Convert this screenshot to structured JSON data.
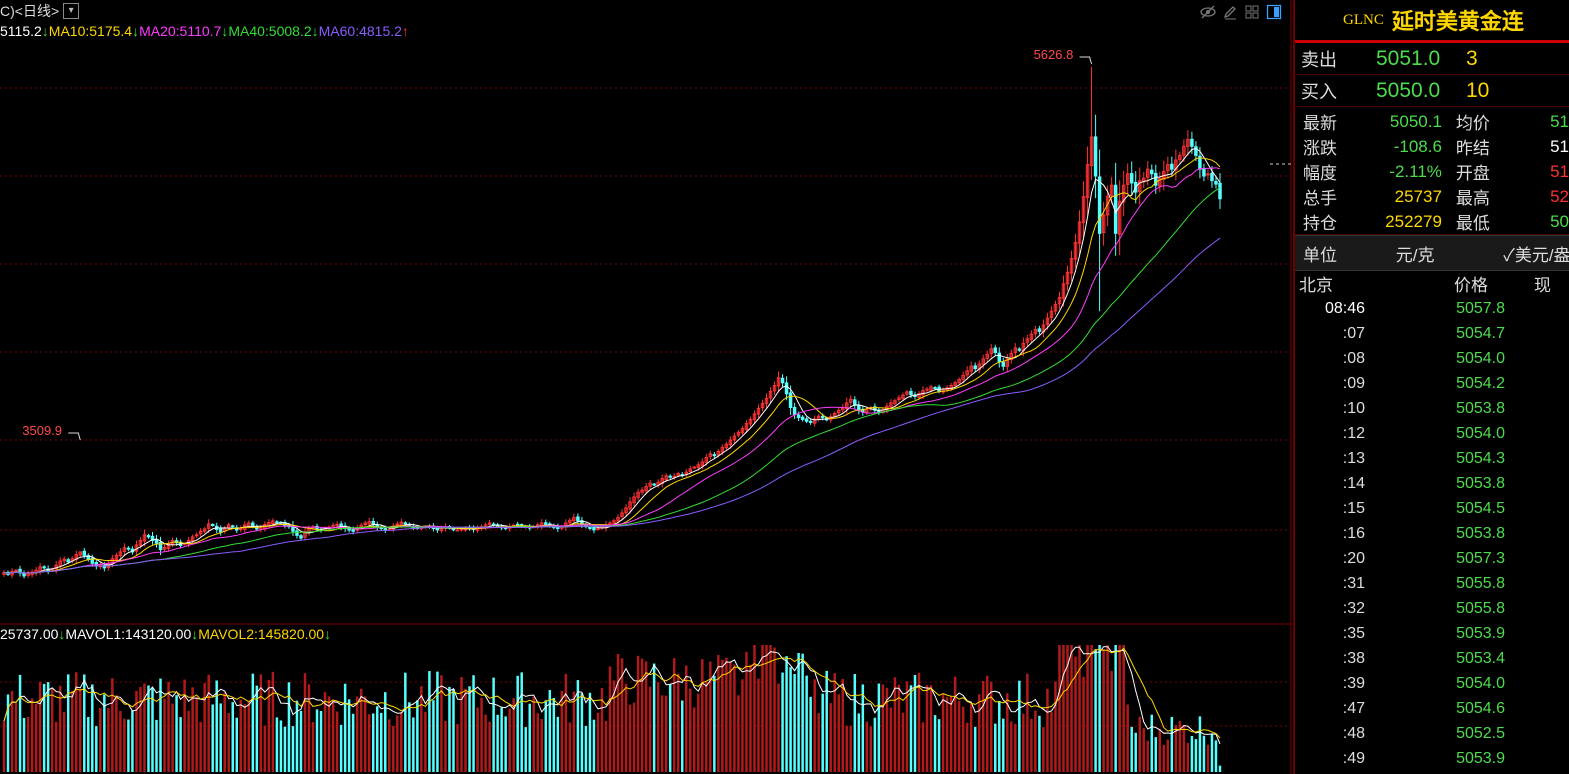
{
  "header": {
    "period_label": "C)<日线>",
    "dropdown_glyph": "▾"
  },
  "ma_legend": [
    {
      "text": "5115.2",
      "arrow": "↓",
      "color": "#ffffff"
    },
    {
      "text": "MA10:5175.4",
      "arrow": "↓",
      "color": "#ffd700"
    },
    {
      "text": "MA20:5110.7",
      "arrow": "↓",
      "color": "#ff3cff"
    },
    {
      "text": "MA40:5008.2",
      "arrow": "↓",
      "color": "#33dd33"
    },
    {
      "text": "MA60:4815.2",
      "arrow": "↑",
      "color": "#8a5cff"
    }
  ],
  "vol_legend": [
    {
      "text": "25737.00",
      "arrow": "↓",
      "color": "#ffffff"
    },
    {
      "text": "MAVOL1:143120.00",
      "arrow": "↓",
      "color": "#ffffff"
    },
    {
      "text": "MAVOL2:145820.00",
      "arrow": "↓",
      "color": "#ffd700"
    }
  ],
  "toolbar_icons": [
    "eye-icon",
    "pencil-icon",
    "grid-icon",
    "panel-icon"
  ],
  "chart_data": {
    "type": "candlestick",
    "high_marker": "5626.8",
    "low_marker": "3509.9",
    "colors": {
      "up": "#ff3232",
      "down": "#54ffff",
      "ma5": "#ffffff",
      "ma10": "#ffd700",
      "ma20": "#ff3cff",
      "ma40": "#33dd33",
      "ma60": "#8a5cff",
      "grid": "#7a0000"
    },
    "closes": [
      3420,
      3412,
      3425,
      3430,
      3418,
      3405,
      3415,
      3422,
      3430,
      3445,
      3440,
      3428,
      3436,
      3452,
      3470,
      3478,
      3466,
      3480,
      3498,
      3510,
      3495,
      3478,
      3460,
      3448,
      3452,
      3440,
      3462,
      3480,
      3495,
      3510,
      3528,
      3522,
      3510,
      3540,
      3560,
      3585,
      3575,
      3560,
      3548,
      3520,
      3530,
      3545,
      3560,
      3550,
      3538,
      3546,
      3560,
      3575,
      3585,
      3600,
      3610,
      3632,
      3625,
      3608,
      3596,
      3612,
      3628,
      3620,
      3605,
      3612,
      3628,
      3636,
      3622,
      3610,
      3615,
      3630,
      3638,
      3645,
      3640,
      3635,
      3625,
      3620,
      3600,
      3582,
      3570,
      3598,
      3612,
      3620,
      3610,
      3604,
      3612,
      3618,
      3626,
      3630,
      3618,
      3612,
      3605,
      3600,
      3615,
      3626,
      3636,
      3642,
      3628,
      3616,
      3612,
      3606,
      3610,
      3622,
      3632,
      3640,
      3630,
      3625,
      3618,
      3612,
      3616,
      3620,
      3618,
      3612,
      3606,
      3614,
      3620,
      3614,
      3608,
      3606,
      3610,
      3615,
      3612,
      3608,
      3615,
      3620,
      3628,
      3636,
      3630,
      3622,
      3616,
      3612,
      3620,
      3626,
      3630,
      3625,
      3618,
      3614,
      3620,
      3628,
      3636,
      3630,
      3624,
      3616,
      3612,
      3620,
      3636,
      3648,
      3660,
      3646,
      3630,
      3620,
      3612,
      3606,
      3612,
      3620,
      3628,
      3636,
      3646,
      3660,
      3680,
      3702,
      3728,
      3750,
      3770,
      3780,
      3795,
      3810,
      3802,
      3814,
      3830,
      3842,
      3836,
      3840,
      3852,
      3846,
      3858,
      3872,
      3880,
      3890,
      3902,
      3922,
      3938,
      3930,
      3948,
      3966,
      3980,
      3998,
      4015,
      4032,
      4048,
      4070,
      4088,
      4112,
      4136,
      4158,
      4180,
      4210,
      4236,
      4270,
      4248,
      4200,
      4140,
      4110,
      4096,
      4088,
      4080,
      4076,
      4090,
      4102,
      4096,
      4086,
      4100,
      4114,
      4128,
      4140,
      4160,
      4176,
      4150,
      4130,
      4120,
      4130,
      4140,
      4128,
      4118,
      4130,
      4146,
      4160,
      4170,
      4182,
      4194,
      4208,
      4196,
      4188,
      4200,
      4214,
      4220,
      4230,
      4224,
      4212,
      4218,
      4226,
      4236,
      4248,
      4262,
      4280,
      4300,
      4320,
      4310,
      4330,
      4352,
      4372,
      4396,
      4380,
      4340,
      4320,
      4352,
      4376,
      4400,
      4390,
      4420,
      4440,
      4460,
      4480,
      4472,
      4500,
      4530,
      4560,
      4590,
      4620,
      4680,
      4730,
      4790,
      4860,
      4950,
      5060,
      5200,
      5320,
      5150,
      4900,
      4980,
      5060,
      5110,
      4900,
      5040,
      5110,
      5160,
      5120,
      5080,
      5130,
      5140,
      5180,
      5160,
      5110,
      5140,
      5170,
      5200,
      5180,
      5220,
      5240,
      5280,
      5310,
      5280,
      5240,
      5180,
      5150,
      5160,
      5130,
      5115,
      5051
    ]
  },
  "side": {
    "code": "GLNC",
    "name": "延时美黄金连",
    "sell_label": "卖出",
    "sell_price": "5051.0",
    "sell_qty": "3",
    "buy_label": "买入",
    "buy_price": "5050.0",
    "buy_qty": "10",
    "stats": [
      {
        "l1": "最新",
        "v1": "5050.1",
        "c1": "#4cdc4c",
        "l2": "均价",
        "v2": "51",
        "c2": "#4cdc4c"
      },
      {
        "l1": "涨跌",
        "v1": "-108.6",
        "c1": "#4cdc4c",
        "l2": "昨结",
        "v2": "51",
        "c2": "#ffffff"
      },
      {
        "l1": "幅度",
        "v1": "-2.11%",
        "c1": "#4cdc4c",
        "l2": "开盘",
        "v2": "51",
        "c2": "#ff3232"
      },
      {
        "l1": "总手",
        "v1": "25737",
        "c1": "#ffd700",
        "l2": "最高",
        "v2": "52",
        "c2": "#ff3232"
      },
      {
        "l1": "持仓",
        "v1": "252279",
        "c1": "#ffd700",
        "l2": "最低",
        "v2": "50",
        "c2": "#4cdc4c"
      }
    ],
    "unit_label": "单位",
    "unit_1": "元/克",
    "unit_2": "✓美元/盎",
    "tick_col_time": "北京",
    "tick_col_price": "价格",
    "tick_col_vol": "现",
    "ticks": [
      {
        "t": "08:46",
        "p": "5057.8"
      },
      {
        "t": ":07",
        "p": "5054.7"
      },
      {
        "t": ":08",
        "p": "5054.0"
      },
      {
        "t": ":09",
        "p": "5054.2"
      },
      {
        "t": ":10",
        "p": "5053.8"
      },
      {
        "t": ":12",
        "p": "5054.0"
      },
      {
        "t": ":13",
        "p": "5054.3"
      },
      {
        "t": ":14",
        "p": "5053.8"
      },
      {
        "t": ":15",
        "p": "5054.5"
      },
      {
        "t": ":16",
        "p": "5053.8"
      },
      {
        "t": ":20",
        "p": "5057.3"
      },
      {
        "t": ":31",
        "p": "5055.8"
      },
      {
        "t": ":32",
        "p": "5055.8"
      },
      {
        "t": ":35",
        "p": "5053.9"
      },
      {
        "t": ":38",
        "p": "5053.4"
      },
      {
        "t": ":39",
        "p": "5054.0"
      },
      {
        "t": ":47",
        "p": "5054.6"
      },
      {
        "t": ":48",
        "p": "5052.5"
      },
      {
        "t": ":49",
        "p": "5053.9"
      }
    ]
  }
}
